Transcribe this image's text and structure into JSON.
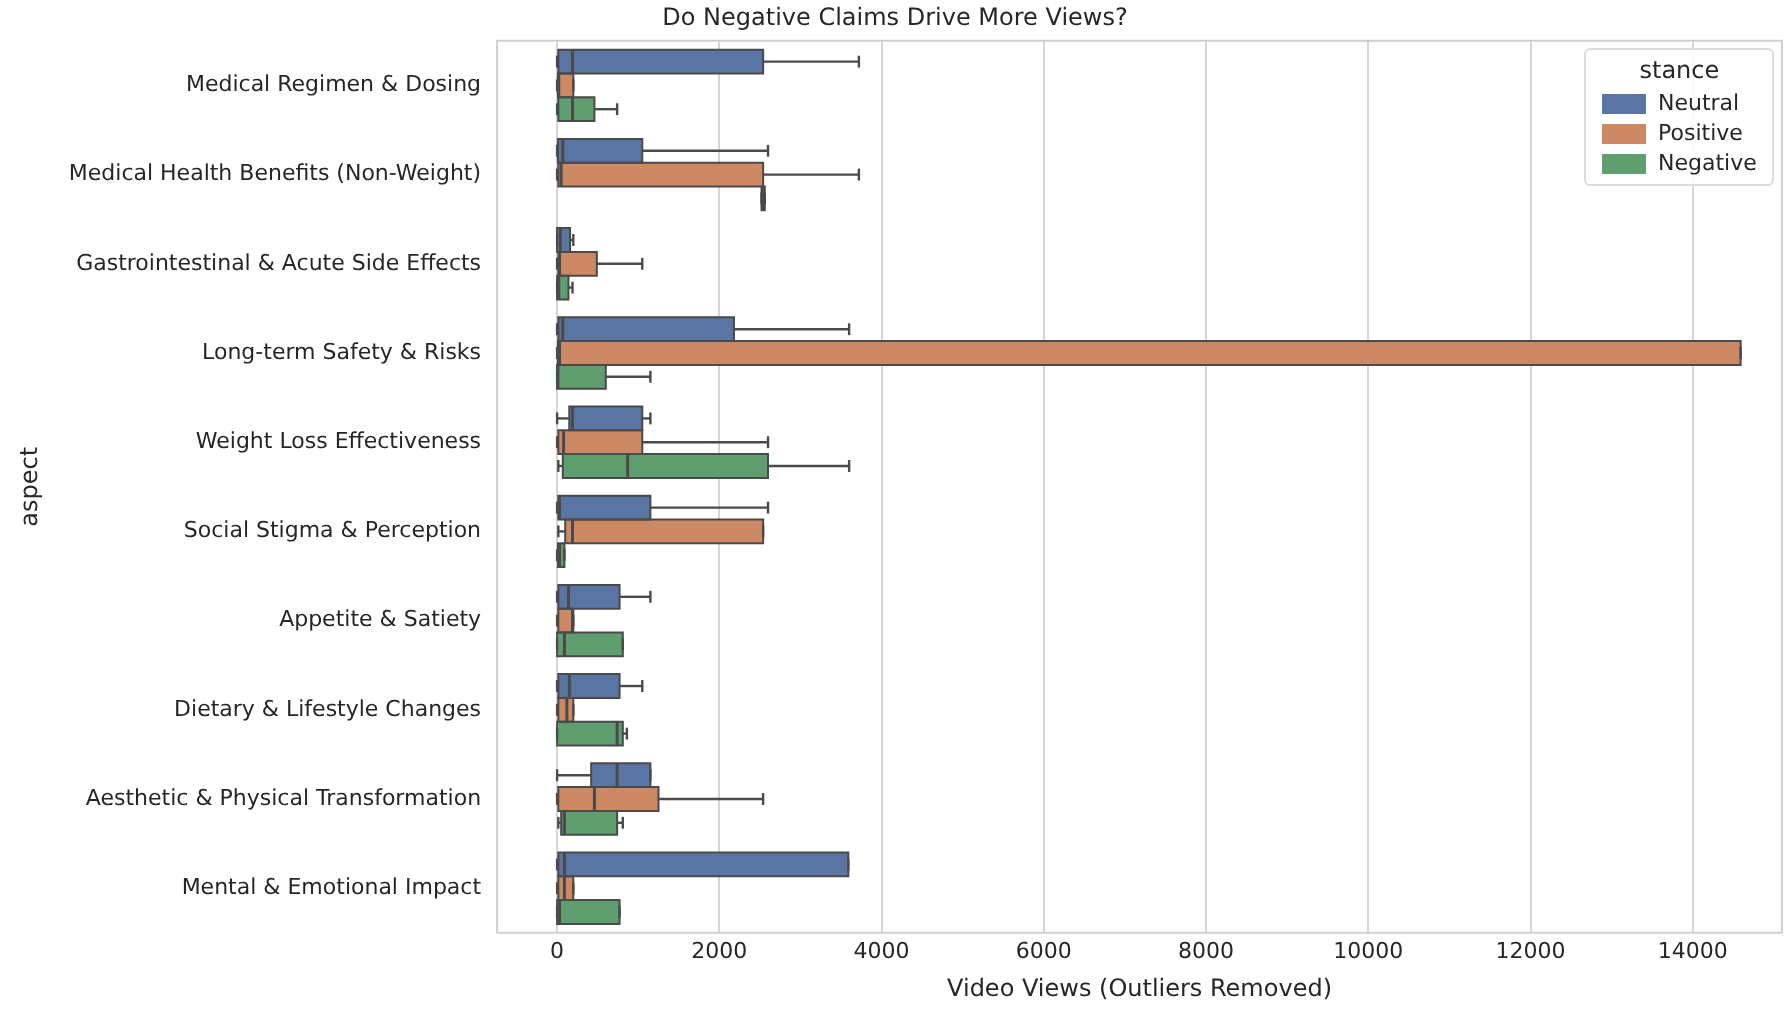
{
  "chart_data": {
    "type": "box",
    "orientation": "horizontal",
    "title": "Do Negative Claims Drive More Views?",
    "xlabel": "Video Views (Outliers Removed)",
    "ylabel": "aspect",
    "legend_title": "stance",
    "legend": "top right",
    "grid": "x",
    "categories": [
      "Medical Regimen & Dosing",
      "Medical Health Benefits (Non-Weight)",
      "Gastrointestinal & Acute Side Effects",
      "Long-term Safety & Risks",
      "Weight Loss Effectiveness",
      "Social Stigma & Perception",
      "Appetite & Satiety",
      "Dietary & Lifestyle Changes",
      "Aesthetic & Physical Transformation",
      "Mental & Emotional Impact"
    ],
    "xlim": [
      -740,
      15100
    ],
    "xticks": [
      0,
      2000,
      4000,
      6000,
      8000,
      10000,
      12000,
      14000
    ],
    "series": [
      {
        "name": "Neutral",
        "color": "#5975a4",
        "boxes": [
          {
            "low": 0,
            "q1": 15,
            "median": 190,
            "q3": 2540,
            "high": 3720
          },
          {
            "low": 0,
            "q1": 10,
            "median": 70,
            "q3": 1050,
            "high": 2600
          },
          {
            "low": 0,
            "q1": 0,
            "median": 40,
            "q3": 160,
            "high": 200
          },
          {
            "low": 0,
            "q1": 15,
            "median": 70,
            "q3": 2180,
            "high": 3600
          },
          {
            "low": 0,
            "q1": 150,
            "median": 190,
            "q3": 1050,
            "high": 1150
          },
          {
            "low": 0,
            "q1": 15,
            "median": 30,
            "q3": 1150,
            "high": 2600
          },
          {
            "low": 0,
            "q1": 15,
            "median": 140,
            "q3": 770,
            "high": 1150
          },
          {
            "low": 0,
            "q1": 15,
            "median": 150,
            "q3": 770,
            "high": 1050
          },
          {
            "low": 0,
            "q1": 420,
            "median": 740,
            "q3": 1150,
            "high": 1150
          },
          {
            "low": 0,
            "q1": 15,
            "median": 90,
            "q3": 3590,
            "high": 3590
          }
        ]
      },
      {
        "name": "Positive",
        "color": "#cc8963",
        "boxes": [
          {
            "low": 0,
            "q1": 10,
            "median": 20,
            "q3": 200,
            "high": 200
          },
          {
            "low": 0,
            "q1": 15,
            "median": 50,
            "q3": 2540,
            "high": 3720
          },
          {
            "low": 0,
            "q1": 15,
            "median": 30,
            "q3": 490,
            "high": 1050
          },
          {
            "low": 0,
            "q1": 10,
            "median": 30,
            "q3": 14590,
            "high": 14590
          },
          {
            "low": 0,
            "q1": 15,
            "median": 80,
            "q3": 1050,
            "high": 2600
          },
          {
            "low": 15,
            "q1": 100,
            "median": 190,
            "q3": 2540,
            "high": 2540
          },
          {
            "low": 0,
            "q1": 15,
            "median": 190,
            "q3": 200,
            "high": 200
          },
          {
            "low": 0,
            "q1": 15,
            "median": 120,
            "q3": 200,
            "high": 200
          },
          {
            "low": 0,
            "q1": 15,
            "median": 460,
            "q3": 1250,
            "high": 2540
          },
          {
            "low": 0,
            "q1": 15,
            "median": 90,
            "q3": 200,
            "high": 200
          }
        ]
      },
      {
        "name": "Negative",
        "color": "#5f9e6e",
        "boxes": [
          {
            "low": 0,
            "q1": 15,
            "median": 190,
            "q3": 460,
            "high": 740
          },
          {
            "low": 2520,
            "q1": 2520,
            "median": 2540,
            "q3": 2560,
            "high": 2560
          },
          {
            "low": 0,
            "q1": 0,
            "median": 20,
            "q3": 140,
            "high": 190
          },
          {
            "low": 0,
            "q1": 0,
            "median": 10,
            "q3": 600,
            "high": 1150
          },
          {
            "low": 15,
            "q1": 70,
            "median": 870,
            "q3": 2600,
            "high": 3600
          },
          {
            "low": 0,
            "q1": 10,
            "median": 30,
            "q3": 90,
            "high": 90
          },
          {
            "low": 0,
            "q1": 0,
            "median": 90,
            "q3": 810,
            "high": 810
          },
          {
            "low": 0,
            "q1": 0,
            "median": 740,
            "q3": 810,
            "high": 860
          },
          {
            "low": 15,
            "q1": 50,
            "median": 90,
            "q3": 740,
            "high": 810
          },
          {
            "low": 0,
            "q1": 0,
            "median": 30,
            "q3": 770,
            "high": 770
          }
        ]
      }
    ]
  }
}
